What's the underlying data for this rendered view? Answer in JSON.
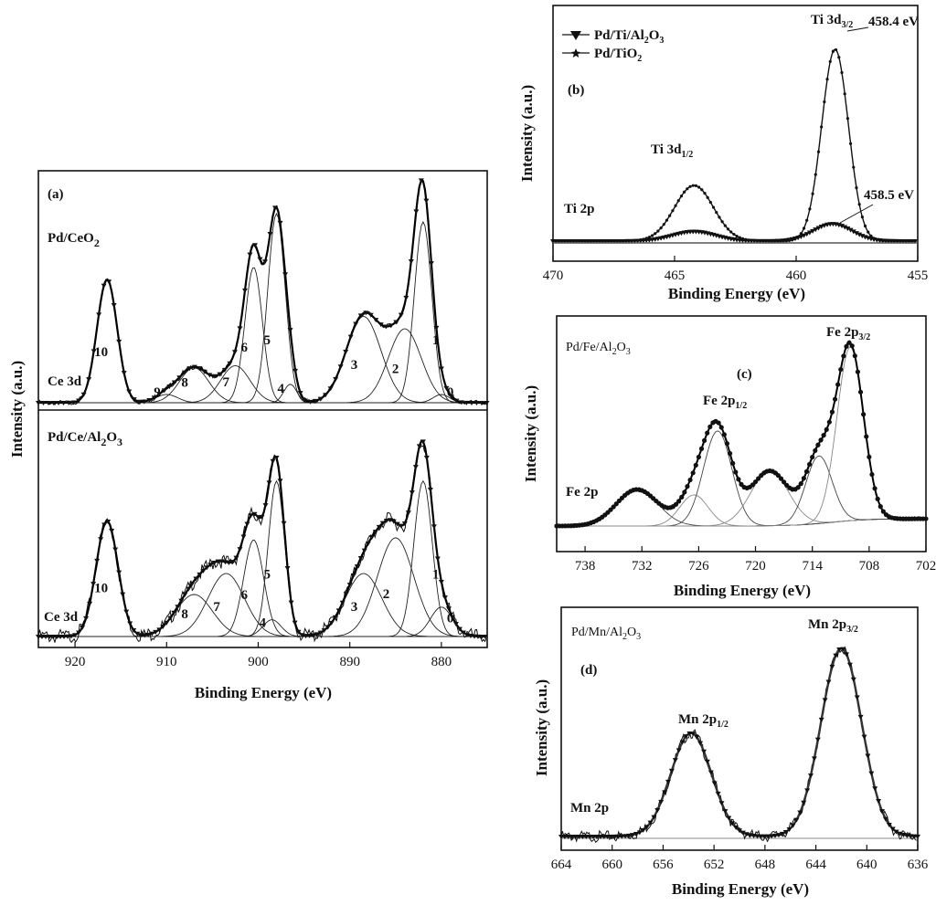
{
  "chart_data": [
    {
      "id": "a",
      "type": "line",
      "panel_label": "(a)",
      "xlabel": "Binding Energy (eV)",
      "ylabel": "Intensity (a.u.)",
      "xlim": [
        924,
        875
      ],
      "xticks": [
        920,
        910,
        900,
        890,
        880
      ],
      "x_reversed": true,
      "subpanels": [
        {
          "sample": "Pd/CeO",
          "sample_sub": "2",
          "region": "Ce 3d",
          "baseline": 0.0,
          "peaks": [
            {
              "n": "0",
              "center": 880.0,
              "height": 0.04,
              "width": 0.9
            },
            {
              "n": "1",
              "center": 882.0,
              "height": 0.88,
              "width": 0.95
            },
            {
              "n": "2",
              "center": 884.0,
              "height": 0.36,
              "width": 1.8
            },
            {
              "n": "3",
              "center": 888.5,
              "height": 0.42,
              "width": 1.9
            },
            {
              "n": "4",
              "center": 896.5,
              "height": 0.09,
              "width": 0.7
            },
            {
              "n": "5",
              "center": 898.0,
              "height": 0.92,
              "width": 0.95
            },
            {
              "n": "6",
              "center": 900.5,
              "height": 0.66,
              "width": 0.95
            },
            {
              "n": "7",
              "center": 902.5,
              "height": 0.18,
              "width": 1.6
            },
            {
              "n": "8",
              "center": 907.0,
              "height": 0.17,
              "width": 1.6
            },
            {
              "n": "9",
              "center": 910.0,
              "height": 0.04,
              "width": 1.2
            },
            {
              "n": "10",
              "center": 916.5,
              "height": 0.6,
              "width": 1.1
            }
          ]
        },
        {
          "sample": "Pd/Ce/Al",
          "sample_sub": "2",
          "sample_tail": "O",
          "sample_sub2": "3",
          "region": "Ce 3d",
          "baseline": 0.0,
          "peaks": [
            {
              "n": "0",
              "center": 880.0,
              "height": 0.14,
              "width": 1.2
            },
            {
              "n": "1",
              "center": 882.0,
              "height": 0.74,
              "width": 1.0
            },
            {
              "n": "2",
              "center": 885.0,
              "height": 0.47,
              "width": 2.0
            },
            {
              "n": "3",
              "center": 888.5,
              "height": 0.3,
              "width": 2.0
            },
            {
              "n": "4",
              "center": 898.5,
              "height": 0.08,
              "width": 1.0
            },
            {
              "n": "5",
              "center": 898.0,
              "height": 0.74,
              "width": 0.9
            },
            {
              "n": "6",
              "center": 900.5,
              "height": 0.46,
              "width": 1.1
            },
            {
              "n": "7",
              "center": 903.5,
              "height": 0.3,
              "width": 2.0
            },
            {
              "n": "8",
              "center": 907.0,
              "height": 0.2,
              "width": 2.0
            },
            {
              "n": "10",
              "center": 916.5,
              "height": 0.55,
              "width": 1.2
            }
          ]
        }
      ]
    },
    {
      "id": "b",
      "type": "line",
      "panel_label": "(b)",
      "region": "Ti 2p",
      "xlabel": "Binding Energy (eV)",
      "ylabel": "Intensity (a.u.)",
      "xlim": [
        470,
        455
      ],
      "xticks": [
        470,
        465,
        460,
        455
      ],
      "x_reversed": true,
      "legend_position": "top-left",
      "series": [
        {
          "name": "Pd/Ti/Al",
          "name_sub": "2",
          "name_tail": "O",
          "name_sub2": "3",
          "marker": "triangle-down",
          "peaks": [
            {
              "center": 464.2,
              "height": 0.05,
              "width": 0.9
            },
            {
              "center": 458.5,
              "height": 0.09,
              "width": 0.8
            }
          ]
        },
        {
          "name": "Pd/TiO",
          "name_sub": "2",
          "marker": "star",
          "peaks": [
            {
              "center": 464.2,
              "height": 0.29,
              "width": 0.8
            },
            {
              "center": 458.4,
              "height": 1.0,
              "width": 0.55
            }
          ]
        }
      ],
      "annotations": [
        {
          "text": "Ti 3d",
          "sub": "3/2",
          "value": "458.4 eV"
        },
        {
          "text": "Ti 3d",
          "sub": "1/2"
        },
        {
          "value": "458.5 eV"
        }
      ]
    },
    {
      "id": "c",
      "type": "line",
      "panel_label": "(c)",
      "sample": "Pd/Fe/Al",
      "sample_sub": "2",
      "sample_tail": "O",
      "sample_sub2": "3",
      "region": "Fe 2p",
      "xlabel": "Binding Energy (eV)",
      "ylabel": "Intensity (a.u.)",
      "xlim": [
        741,
        702
      ],
      "xticks": [
        738,
        732,
        726,
        720,
        714,
        708,
        702
      ],
      "x_reversed": true,
      "peaks": [
        {
          "center": 732.5,
          "height": 0.2,
          "width": 2.2
        },
        {
          "center": 726.5,
          "height": 0.17,
          "width": 1.5
        },
        {
          "center": 724.0,
          "height": 0.52,
          "width": 1.5
        },
        {
          "center": 718.5,
          "height": 0.3,
          "width": 2.0
        },
        {
          "center": 713.3,
          "height": 0.37,
          "width": 1.4
        },
        {
          "center": 710.0,
          "height": 0.95,
          "width": 1.4
        }
      ],
      "annotations": [
        {
          "text": "Fe 2p",
          "sub": "3/2"
        },
        {
          "text": "Fe 2p",
          "sub": "1/2"
        }
      ]
    },
    {
      "id": "d",
      "type": "line",
      "panel_label": "(d)",
      "sample": "Pd/Mn/Al",
      "sample_sub": "2",
      "sample_tail": "O",
      "sample_sub2": "3",
      "region": "Mn 2p",
      "xlabel": "Binding Energy (eV)",
      "ylabel": "Intensity (a.u.)",
      "xlim": [
        664,
        636
      ],
      "xticks": [
        664,
        660,
        656,
        652,
        648,
        644,
        640,
        636
      ],
      "x_reversed": true,
      "peaks": [
        {
          "center": 653.8,
          "height": 0.55,
          "width": 1.6
        },
        {
          "center": 642.0,
          "height": 1.0,
          "width": 1.6
        }
      ],
      "annotations": [
        {
          "text": "Mn 2p",
          "sub": "3/2"
        },
        {
          "text": "Mn 2p",
          "sub": "1/2"
        }
      ]
    }
  ]
}
